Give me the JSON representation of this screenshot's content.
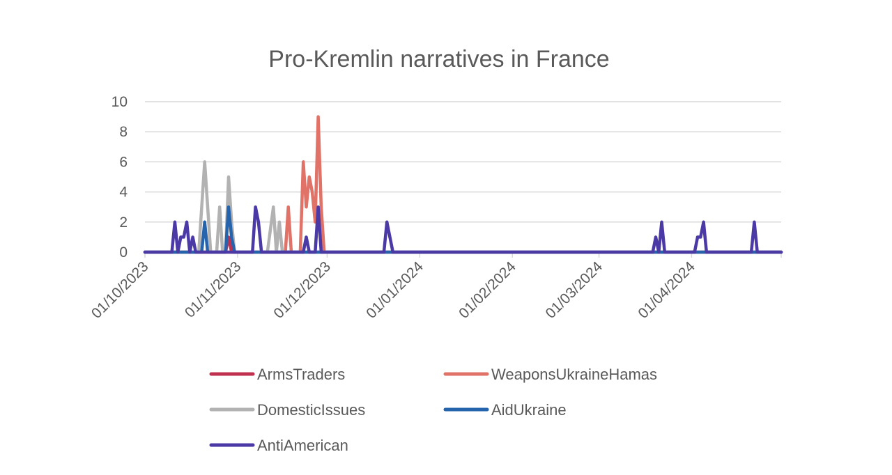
{
  "chart_data": {
    "type": "line",
    "title": "Pro-Kremlin narratives in France",
    "xlabel": "",
    "ylabel": "",
    "ylim": [
      0,
      10
    ],
    "xlim": [
      "2023-10-01",
      "2024-05-01"
    ],
    "y_ticks": [
      "0",
      "2",
      "4",
      "6",
      "8",
      "10"
    ],
    "x_ticks": [
      {
        "date": "2023-10-01",
        "label": "01/10/2023"
      },
      {
        "date": "2023-11-01",
        "label": "01/11/2023"
      },
      {
        "date": "2023-12-01",
        "label": "01/12/2023"
      },
      {
        "date": "2024-01-01",
        "label": "01/01/2024"
      },
      {
        "date": "2024-02-01",
        "label": "01/02/2024"
      },
      {
        "date": "2024-03-01",
        "label": "01/03/2024"
      },
      {
        "date": "2024-04-01",
        "label": "01/04/2024"
      }
    ],
    "grid": true,
    "legend_position": "bottom",
    "series": [
      {
        "name": "ArmsTraders",
        "color": "#C0304F",
        "points": [
          [
            "2023-10-01",
            0
          ],
          [
            "2023-10-28",
            0
          ],
          [
            "2023-10-29",
            1
          ],
          [
            "2023-10-30",
            0
          ],
          [
            "2024-05-01",
            0
          ]
        ]
      },
      {
        "name": "WeaponsUkraineHamas",
        "color": "#E07268",
        "points": [
          [
            "2023-10-01",
            0
          ],
          [
            "2023-11-17",
            0
          ],
          [
            "2023-11-18",
            3
          ],
          [
            "2023-11-19",
            0
          ],
          [
            "2023-11-22",
            0
          ],
          [
            "2023-11-23",
            6
          ],
          [
            "2023-11-24",
            3
          ],
          [
            "2023-11-25",
            5
          ],
          [
            "2023-11-26",
            4
          ],
          [
            "2023-11-27",
            2
          ],
          [
            "2023-11-28",
            9
          ],
          [
            "2023-11-29",
            3
          ],
          [
            "2023-11-30",
            0
          ],
          [
            "2024-05-01",
            0
          ]
        ]
      },
      {
        "name": "DomesticIssues",
        "color": "#B2B2B2",
        "points": [
          [
            "2023-10-01",
            0
          ],
          [
            "2023-10-19",
            0
          ],
          [
            "2023-10-21",
            6
          ],
          [
            "2023-10-23",
            0
          ],
          [
            "2023-10-25",
            0
          ],
          [
            "2023-10-26",
            3
          ],
          [
            "2023-10-27",
            0
          ],
          [
            "2023-10-28",
            0
          ],
          [
            "2023-10-29",
            5
          ],
          [
            "2023-10-30",
            2
          ],
          [
            "2023-10-31",
            0
          ],
          [
            "2023-11-11",
            0
          ],
          [
            "2023-11-13",
            3
          ],
          [
            "2023-11-14",
            0
          ],
          [
            "2023-11-15",
            2
          ],
          [
            "2023-11-16",
            0
          ],
          [
            "2024-05-01",
            0
          ]
        ]
      },
      {
        "name": "AidUkraine",
        "color": "#2563AD",
        "points": [
          [
            "2023-10-01",
            0
          ],
          [
            "2023-10-20",
            0
          ],
          [
            "2023-10-21",
            2
          ],
          [
            "2023-10-22",
            0
          ],
          [
            "2023-10-28",
            0
          ],
          [
            "2023-10-29",
            3
          ],
          [
            "2023-10-30",
            1
          ],
          [
            "2023-10-31",
            0
          ],
          [
            "2024-05-01",
            0
          ]
        ]
      },
      {
        "name": "AntiAmerican",
        "color": "#4B3AA6",
        "points": [
          [
            "2023-10-01",
            0
          ],
          [
            "2023-10-10",
            0
          ],
          [
            "2023-10-11",
            2
          ],
          [
            "2023-10-12",
            0
          ],
          [
            "2023-10-13",
            1
          ],
          [
            "2023-10-14",
            1
          ],
          [
            "2023-10-15",
            2
          ],
          [
            "2023-10-16",
            0
          ],
          [
            "2023-10-17",
            1
          ],
          [
            "2023-10-18",
            0
          ],
          [
            "2023-11-06",
            0
          ],
          [
            "2023-11-07",
            3
          ],
          [
            "2023-11-08",
            2
          ],
          [
            "2023-11-09",
            0
          ],
          [
            "2023-11-23",
            0
          ],
          [
            "2023-11-24",
            1
          ],
          [
            "2023-11-25",
            0
          ],
          [
            "2023-11-27",
            0
          ],
          [
            "2023-11-28",
            3
          ],
          [
            "2023-11-29",
            0
          ],
          [
            "2023-12-20",
            0
          ],
          [
            "2023-12-21",
            2
          ],
          [
            "2023-12-23",
            0
          ],
          [
            "2024-03-19",
            0
          ],
          [
            "2024-03-20",
            1
          ],
          [
            "2024-03-21",
            0
          ],
          [
            "2024-03-22",
            2
          ],
          [
            "2024-03-23",
            0
          ],
          [
            "2024-04-02",
            0
          ],
          [
            "2024-04-03",
            1
          ],
          [
            "2024-04-04",
            1
          ],
          [
            "2024-04-05",
            2
          ],
          [
            "2024-04-06",
            0
          ],
          [
            "2024-04-21",
            0
          ],
          [
            "2024-04-22",
            2
          ],
          [
            "2024-04-23",
            0
          ],
          [
            "2024-05-01",
            0
          ]
        ]
      }
    ]
  }
}
